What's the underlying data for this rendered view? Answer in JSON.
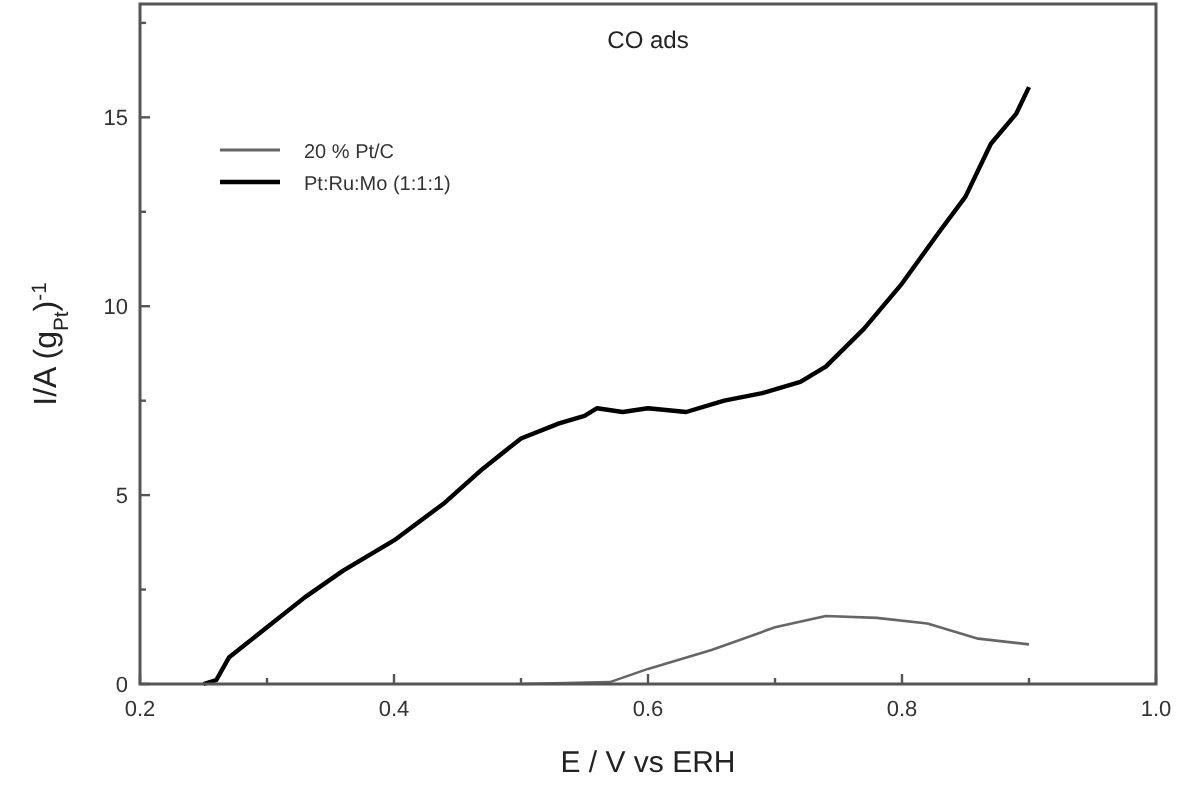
{
  "chart_data": {
    "type": "line",
    "title": "CO ads",
    "xlabel": "E / V vs ERH",
    "ylabel": "I/A (g$_{Pt}$)$^{-1}$",
    "xlim": [
      0.2,
      1.0
    ],
    "xticks": [
      0.2,
      {
        "value": 0.3,
        "label": null
      },
      0.4,
      {
        "value": 0.5,
        "label": null
      },
      0.6,
      {
        "value": 0.7,
        "label": null
      },
      0.8,
      {
        "value": 0.9,
        "label": null
      },
      {
        "value": 1.0,
        "label": "1.0"
      }
    ],
    "ylim": [
      0,
      18
    ],
    "yticks": [
      0,
      {
        "value": 2.5,
        "label": null
      },
      5,
      {
        "value": 7.5,
        "label": null
      },
      10,
      {
        "value": 12.5,
        "label": null
      },
      15,
      {
        "value": 17.5,
        "label": null
      }
    ],
    "legend": "top left",
    "grid": false,
    "series": [
      {
        "name": "20 % Pt/C",
        "color": "#666666",
        "x": [
          0.5,
          0.57,
          0.6,
          0.65,
          0.7,
          0.74,
          0.78,
          0.82,
          0.86,
          0.9
        ],
        "values": [
          0,
          0.05,
          0.4,
          0.9,
          1.5,
          1.8,
          1.75,
          1.6,
          1.2,
          1.05
        ]
      },
      {
        "name": "Pt:Ru:Mo (1:1:1)",
        "color": "#000000",
        "x": [
          0.25,
          0.26,
          0.27,
          0.3,
          0.33,
          0.36,
          0.4,
          0.44,
          0.47,
          0.5,
          0.53,
          0.55,
          0.56,
          0.58,
          0.6,
          0.63,
          0.66,
          0.69,
          0.72,
          0.74,
          0.77,
          0.8,
          0.83,
          0.85,
          0.87,
          0.89,
          0.9
        ],
        "values": [
          0,
          0.1,
          0.7,
          1.5,
          2.3,
          3.0,
          3.8,
          4.8,
          5.7,
          6.5,
          6.9,
          7.1,
          7.3,
          7.2,
          7.3,
          7.2,
          7.5,
          7.7,
          8.0,
          8.4,
          9.4,
          10.6,
          12.0,
          12.9,
          14.3,
          15.1,
          15.8
        ]
      }
    ]
  }
}
